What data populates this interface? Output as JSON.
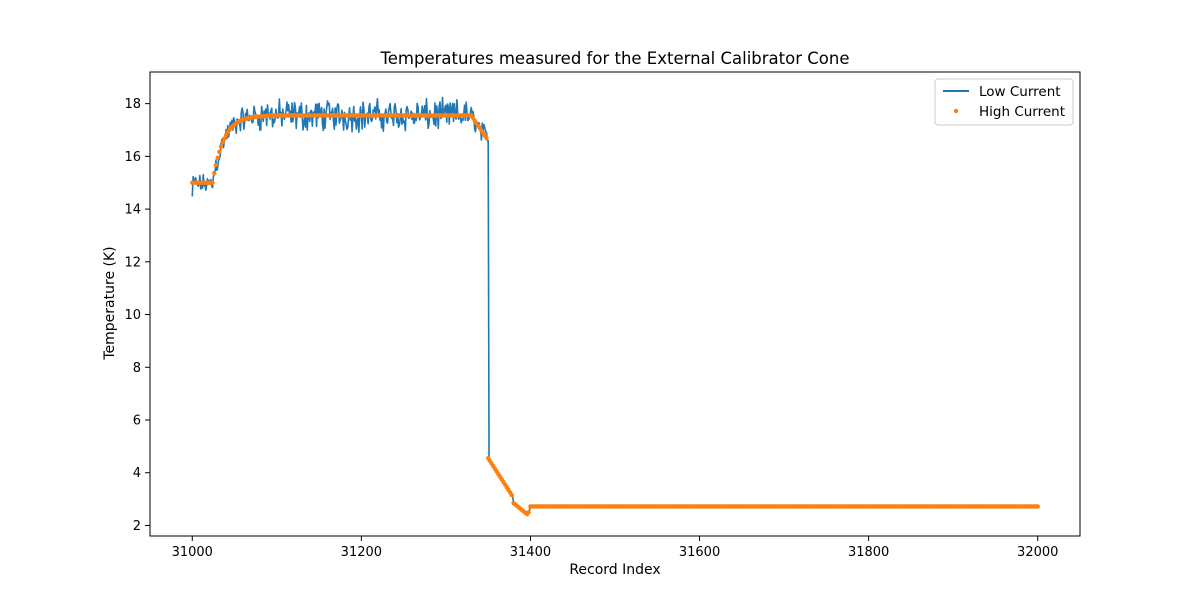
{
  "chart_data": {
    "type": "line",
    "title": "Temperatures measured for the External Calibrator Cone",
    "xlabel": "Record Index",
    "ylabel": "Temperature (K)",
    "xlim": [
      30950,
      32050
    ],
    "ylim": [
      1.6,
      19.2
    ],
    "xticks": [
      31000,
      31200,
      31400,
      31600,
      31800,
      32000
    ],
    "yticks": [
      2,
      4,
      6,
      8,
      10,
      12,
      14,
      16,
      18
    ],
    "grid": false,
    "legend_position": "top-right",
    "series": [
      {
        "name": "Low Current",
        "style": "line",
        "color": "#1f77b4",
        "model": {
          "x_start": 31000,
          "x_end": 32000,
          "step": 1,
          "segments": [
            {
              "from": 31000,
              "to": 31024,
              "kind": "flat",
              "value": 14.95,
              "noise": 0.28,
              "start_value": 14.5
            },
            {
              "from": 31024,
              "to": 31080,
              "kind": "exp_rise",
              "start": 15.0,
              "end": 17.6,
              "tau": 14,
              "noise": 0.35
            },
            {
              "from": 31080,
              "to": 31330,
              "kind": "flat",
              "value": 17.55,
              "noise": 0.45
            },
            {
              "from": 31330,
              "to": 31350,
              "kind": "linear",
              "start": 17.55,
              "end": 16.6,
              "noise": 0.3
            },
            {
              "from": 31350,
              "to": 31351,
              "kind": "linear",
              "start": 16.6,
              "end": 4.55,
              "noise": 0
            },
            {
              "from": 31351,
              "to": 31380,
              "kind": "linear",
              "start": 4.55,
              "end": 3.05,
              "noise": 0
            },
            {
              "from": 31380,
              "to": 31397,
              "kind": "linear",
              "start": 2.85,
              "end": 2.4,
              "noise": 0
            },
            {
              "from": 31397,
              "to": 31400,
              "kind": "linear",
              "start": 2.4,
              "end": 2.72,
              "noise": 0
            },
            {
              "from": 31400,
              "to": 32000,
              "kind": "flat",
              "value": 2.72,
              "noise": 0
            }
          ]
        }
      },
      {
        "name": "High Current",
        "style": "scatter",
        "color": "#ff7f0e",
        "model": {
          "x_start": 31000,
          "x_end": 32000,
          "step": 2,
          "segments": [
            {
              "from": 31000,
              "to": 31024,
              "kind": "flat",
              "value": 15.0,
              "noise": 0
            },
            {
              "from": 31024,
              "to": 31090,
              "kind": "exp_rise",
              "start": 15.0,
              "end": 17.55,
              "tau": 13,
              "noise": 0
            },
            {
              "from": 31090,
              "to": 31330,
              "kind": "flat",
              "value": 17.55,
              "noise": 0
            },
            {
              "from": 31330,
              "to": 31350,
              "kind": "linear",
              "start": 17.55,
              "end": 16.6,
              "noise": 0
            },
            {
              "from": 31350,
              "to": 31380,
              "kind": "linear",
              "start": 4.55,
              "end": 3.05,
              "noise": 0
            },
            {
              "from": 31380,
              "to": 31397,
              "kind": "linear",
              "start": 2.85,
              "end": 2.4,
              "noise": 0
            },
            {
              "from": 31397,
              "to": 31400,
              "kind": "linear",
              "start": 2.4,
              "end": 2.72,
              "noise": 0
            },
            {
              "from": 31400,
              "to": 32000,
              "kind": "flat",
              "value": 2.72,
              "noise": 0
            }
          ]
        }
      }
    ]
  }
}
